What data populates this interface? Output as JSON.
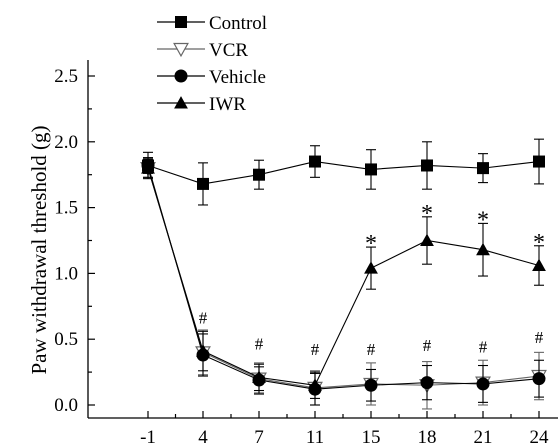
{
  "chart_data": {
    "type": "line",
    "ylabel": "Paw withdrawal threshold (g)",
    "xlabel": "",
    "categories": [
      "-1",
      "4",
      "7",
      "11",
      "15",
      "18",
      "21",
      "24"
    ],
    "ylim": [
      0,
      2.5
    ],
    "yticks": [
      "0.0",
      "0.5",
      "1.0",
      "1.5",
      "2.0",
      "2.5"
    ],
    "legend_position": "top-left",
    "series": [
      {
        "name": "Control",
        "marker": "square",
        "color": "#000000",
        "values": [
          1.82,
          1.68,
          1.75,
          1.85,
          1.79,
          1.82,
          1.8,
          1.85
        ],
        "errors": [
          0.1,
          0.16,
          0.11,
          0.12,
          0.15,
          0.18,
          0.11,
          0.17
        ]
      },
      {
        "name": "VCR",
        "marker": "triangle-down-open",
        "color": "#666666",
        "values": [
          1.8,
          0.4,
          0.2,
          0.13,
          0.16,
          0.15,
          0.17,
          0.22
        ],
        "errors": [
          0.07,
          0.17,
          0.12,
          0.13,
          0.16,
          0.18,
          0.17,
          0.18
        ]
      },
      {
        "name": "Vehicle",
        "marker": "circle",
        "color": "#000000",
        "values": [
          1.82,
          0.38,
          0.19,
          0.12,
          0.15,
          0.17,
          0.16,
          0.2
        ],
        "errors": [
          0.06,
          0.16,
          0.1,
          0.12,
          0.12,
          0.13,
          0.14,
          0.14
        ]
      },
      {
        "name": "IWR",
        "marker": "triangle-up",
        "color": "#000000",
        "values": [
          1.8,
          0.41,
          0.21,
          0.15,
          1.04,
          1.25,
          1.18,
          1.06
        ],
        "errors": [
          0.07,
          0.15,
          0.1,
          0.1,
          0.16,
          0.18,
          0.2,
          0.15
        ]
      }
    ],
    "annotations": [
      {
        "x": "4",
        "y": 0.62,
        "text": "#"
      },
      {
        "x": "7",
        "y": 0.42,
        "text": "#"
      },
      {
        "x": "11",
        "y": 0.38,
        "text": "#"
      },
      {
        "x": "15",
        "y": 0.38,
        "text": "#"
      },
      {
        "x": "18",
        "y": 0.41,
        "text": "#"
      },
      {
        "x": "21",
        "y": 0.4,
        "text": "#"
      },
      {
        "x": "24",
        "y": 0.47,
        "text": "#"
      },
      {
        "x": "15",
        "y": 1.26,
        "text": "*"
      },
      {
        "x": "18",
        "y": 1.49,
        "text": "*"
      },
      {
        "x": "21",
        "y": 1.44,
        "text": "*"
      },
      {
        "x": "24",
        "y": 1.27,
        "text": "*"
      }
    ]
  }
}
